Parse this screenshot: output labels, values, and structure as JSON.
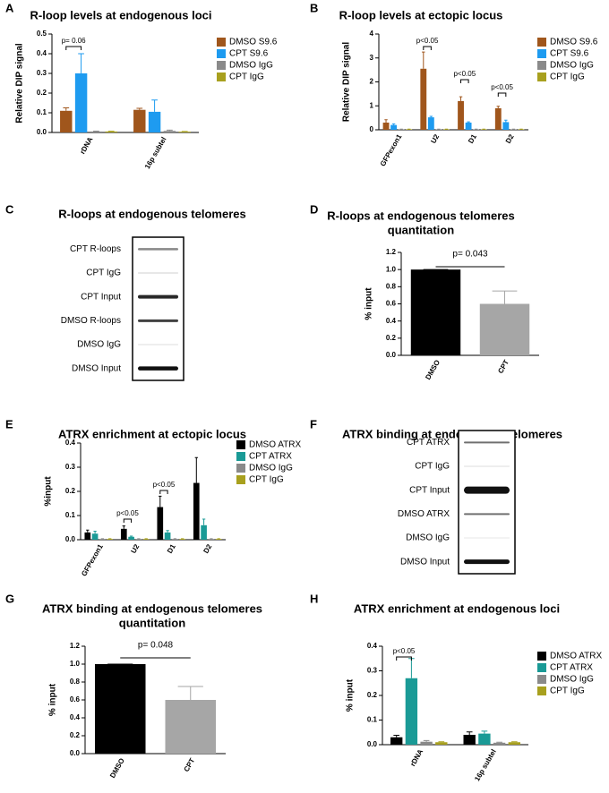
{
  "chart_data": [
    {
      "type": "bar",
      "panel": "A",
      "title": [
        "R-loop levels at endogenous loci"
      ],
      "ylabel": "Relative DIP signal",
      "categories": [
        "rDNA",
        "16p subtel"
      ],
      "series": [
        {
          "name": "DMSO S9.6",
          "color": "#a0561c",
          "values": [
            0.11,
            0.115
          ],
          "errors": [
            0.015,
            0.008
          ]
        },
        {
          "name": "CPT S9.6",
          "color": "#1e9bf0",
          "values": [
            0.3,
            0.105
          ],
          "errors": [
            0.1,
            0.06
          ]
        },
        {
          "name": "DMSO IgG",
          "color": "#8a8a8a",
          "values": [
            0.005,
            0.008
          ],
          "errors": [
            0.002,
            0.004
          ]
        },
        {
          "name": "CPT IgG",
          "color": "#a8a01e",
          "values": [
            0.005,
            0.004
          ],
          "errors": [
            0.001,
            0.001
          ]
        }
      ],
      "ylim": [
        0,
        0.5
      ],
      "yticks": [
        {
          "value": 0,
          "label": "0.0"
        },
        0.1,
        0.2,
        0.3,
        0.4,
        0.5
      ],
      "annotations": [
        "p= 0.06"
      ]
    },
    {
      "type": "bar",
      "panel": "B",
      "title": [
        "R-loop levels at ectopic locus"
      ],
      "ylabel": "Relative DIP signal",
      "categories": [
        "GFPexon1",
        "U2",
        "D1",
        "D2"
      ],
      "series": [
        {
          "name": "DMSO S9.6",
          "color": "#a0561c",
          "values": [
            0.3,
            2.55,
            1.2,
            0.9
          ],
          "errors": [
            0.12,
            0.7,
            0.18,
            0.08
          ]
        },
        {
          "name": "CPT S9.6",
          "color": "#1e9bf0",
          "values": [
            0.2,
            0.52,
            0.3,
            0.32
          ],
          "errors": [
            0.05,
            0.04,
            0.03,
            0.08
          ]
        },
        {
          "name": "DMSO IgG",
          "color": "#8a8a8a",
          "values": [
            0.02,
            0.02,
            0.02,
            0.02
          ],
          "errors": [
            0.01,
            0.01,
            0.01,
            0.01
          ]
        },
        {
          "name": "CPT IgG",
          "color": "#a8a01e",
          "values": [
            0.02,
            0.02,
            0.02,
            0.02
          ],
          "errors": [
            0.01,
            0.01,
            0.01,
            0.01
          ]
        }
      ],
      "ylim": [
        0,
        4
      ],
      "yticks": [
        0,
        1,
        2,
        3,
        4
      ],
      "annotations": [
        "p<0.05",
        "p<0.05",
        "p<0.05"
      ]
    },
    {
      "type": "blot",
      "panel": "C",
      "title": [
        "R-loops at endogenous telomeres"
      ],
      "labels": [
        "CPT R-loops",
        "CPT IgG",
        "CPT Input",
        "DMSO R-loops",
        "DMSO IgG",
        "DMSO Input"
      ]
    },
    {
      "type": "bar",
      "panel": "D",
      "title": [
        "R-loops at endogenous telomeres",
        "quantitation"
      ],
      "ylabel": "% input",
      "categories": [
        "DMSO",
        "CPT"
      ],
      "values": [
        1.0,
        0.6
      ],
      "errors": [
        0,
        0.15
      ],
      "colors": [
        "#000000",
        "#a6a6a6"
      ],
      "ylim": [
        0,
        1.2
      ],
      "yticks": [
        {
          "value": 0,
          "label": "0.0"
        },
        0.2,
        0.4,
        0.6,
        0.8,
        {
          "value": 1,
          "label": "1.0"
        },
        1.2
      ],
      "annotations": [
        "p= 0.043"
      ]
    },
    {
      "type": "bar",
      "panel": "E",
      "title": [
        "ATRX enrichment at ectopic locus"
      ],
      "ylabel": "%input",
      "categories": [
        "GFPexon1",
        "U2",
        "D1",
        "D2"
      ],
      "series": [
        {
          "name": "DMSO ATRX",
          "color": "#000000",
          "values": [
            0.03,
            0.045,
            0.135,
            0.235
          ],
          "errors": [
            0.01,
            0.012,
            0.045,
            0.105
          ]
        },
        {
          "name": "CPT ATRX",
          "color": "#1a9a96",
          "values": [
            0.025,
            0.012,
            0.03,
            0.06
          ],
          "errors": [
            0.01,
            0.003,
            0.008,
            0.025
          ]
        },
        {
          "name": "DMSO IgG",
          "color": "#8a8a8a",
          "values": [
            0.003,
            0.003,
            0.003,
            0.003
          ],
          "errors": [
            0.001,
            0.001,
            0.001,
            0.001
          ]
        },
        {
          "name": "CPT IgG",
          "color": "#a8a01e",
          "values": [
            0.003,
            0.003,
            0.003,
            0.003
          ],
          "errors": [
            0.001,
            0.001,
            0.001,
            0.001
          ]
        }
      ],
      "ylim": [
        0,
        0.4
      ],
      "yticks": [
        {
          "value": 0,
          "label": "0.0"
        },
        0.1,
        0.2,
        0.3,
        0.4
      ],
      "annotations": [
        "p<0.05",
        "p<0.05"
      ]
    },
    {
      "type": "blot",
      "panel": "F",
      "title": [
        "ATRX binding at endogenous telomeres"
      ],
      "labels": [
        "CPT ATRX",
        "CPT IgG",
        "CPT Input",
        "DMSO ATRX",
        "DMSO IgG",
        "DMSO Input"
      ]
    },
    {
      "type": "bar",
      "panel": "G",
      "title": [
        "ATRX binding at endogenous telomeres",
        "quantitation"
      ],
      "ylabel": "% input",
      "categories": [
        "DMSO",
        "CPT"
      ],
      "values": [
        1.0,
        0.6
      ],
      "errors": [
        0,
        0.15
      ],
      "colors": [
        "#000000",
        "#a6a6a6"
      ],
      "ylim": [
        0,
        1.2
      ],
      "yticks": [
        {
          "value": 0,
          "label": "0.0"
        },
        0.2,
        0.4,
        0.6,
        0.8,
        {
          "value": 1,
          "label": "1.0"
        },
        1.2
      ],
      "annotations": [
        "p= 0.048"
      ]
    },
    {
      "type": "bar",
      "panel": "H",
      "title": [
        "ATRX enrichment at endogenous loci"
      ],
      "ylabel": "% input",
      "categories": [
        "rDNA",
        "16p subtel"
      ],
      "series": [
        {
          "name": "DMSO ATRX",
          "color": "#000000",
          "values": [
            0.03,
            0.04
          ],
          "errors": [
            0.008,
            0.012
          ]
        },
        {
          "name": "CPT ATRX",
          "color": "#1a9a96",
          "values": [
            0.27,
            0.045
          ],
          "errors": [
            0.08,
            0.01
          ]
        },
        {
          "name": "DMSO IgG",
          "color": "#8a8a8a",
          "values": [
            0.012,
            0.008
          ],
          "errors": [
            0.005,
            0.002
          ]
        },
        {
          "name": "CPT IgG",
          "color": "#a8a01e",
          "values": [
            0.01,
            0.01
          ],
          "errors": [
            0.002,
            0.002
          ]
        }
      ],
      "ylim": [
        0,
        0.4
      ],
      "yticks": [
        {
          "value": 0,
          "label": "0.0"
        },
        0.1,
        0.2,
        0.3,
        0.4
      ],
      "annotations": [
        "p<0.05"
      ]
    }
  ]
}
